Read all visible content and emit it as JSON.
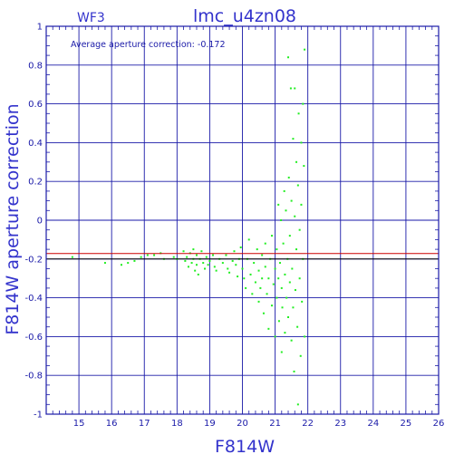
{
  "chart_data": {
    "type": "scatter",
    "title": "lmc_u4zn08",
    "subtitle": "WF3",
    "annotation": "Average aperture correction:  -0.172",
    "xlabel": "F814W",
    "ylabel": "F814W aperture correction",
    "xlim": [
      14,
      26
    ],
    "ylim": [
      -1,
      1
    ],
    "xticks": [
      15,
      16,
      17,
      18,
      19,
      20,
      21,
      22,
      23,
      24,
      25,
      26
    ],
    "yticks": [
      "-1",
      "-0.8",
      "-0.6",
      "-0.4",
      "-0.2",
      "0",
      "0.2",
      "0.4",
      "0.6",
      "0.8",
      "1"
    ],
    "grid": true,
    "colors": {
      "axis": "#1a1aa8",
      "grid": "#1a1aa8",
      "points": "#22ee22",
      "average_line": "#cc0000",
      "reference_line": "#000000"
    },
    "hlines": [
      {
        "label": "average",
        "y": -0.172
      },
      {
        "label": "reference",
        "y": -0.2
      }
    ],
    "series": [
      {
        "points": [
          [
            14.8,
            -0.19
          ],
          [
            15.8,
            -0.22
          ],
          [
            16.3,
            -0.23
          ],
          [
            16.5,
            -0.22
          ],
          [
            16.7,
            -0.21
          ],
          [
            16.9,
            -0.19
          ],
          [
            17.1,
            -0.18
          ],
          [
            17.3,
            -0.18
          ],
          [
            17.5,
            -0.17
          ],
          [
            17.6,
            -0.2
          ],
          [
            17.9,
            -0.19
          ],
          [
            18.0,
            -0.2
          ],
          [
            18.2,
            -0.16
          ],
          [
            18.25,
            -0.21
          ],
          [
            18.3,
            -0.19
          ],
          [
            18.35,
            -0.24
          ],
          [
            18.4,
            -0.17
          ],
          [
            18.45,
            -0.22
          ],
          [
            18.5,
            -0.15
          ],
          [
            18.5,
            -0.2
          ],
          [
            18.55,
            -0.26
          ],
          [
            18.6,
            -0.18
          ],
          [
            18.6,
            -0.23
          ],
          [
            18.65,
            -0.28
          ],
          [
            18.7,
            -0.2
          ],
          [
            18.75,
            -0.16
          ],
          [
            18.8,
            -0.22
          ],
          [
            18.85,
            -0.25
          ],
          [
            18.9,
            -0.19
          ],
          [
            18.95,
            -0.23
          ],
          [
            19.0,
            -0.21
          ],
          [
            19.1,
            -0.18
          ],
          [
            19.15,
            -0.24
          ],
          [
            19.2,
            -0.26
          ],
          [
            19.3,
            -0.2
          ],
          [
            19.4,
            -0.22
          ],
          [
            19.5,
            -0.18
          ],
          [
            19.55,
            -0.25
          ],
          [
            19.6,
            -0.27
          ],
          [
            19.7,
            -0.21
          ],
          [
            19.75,
            -0.16
          ],
          [
            19.8,
            -0.23
          ],
          [
            19.85,
            -0.29
          ],
          [
            19.9,
            -0.2
          ],
          [
            19.95,
            -0.14
          ],
          [
            20.0,
            -0.25
          ],
          [
            20.05,
            -0.3
          ],
          [
            20.1,
            -0.35
          ],
          [
            20.15,
            -0.2
          ],
          [
            20.2,
            -0.1
          ],
          [
            20.25,
            -0.28
          ],
          [
            20.3,
            -0.38
          ],
          [
            20.35,
            -0.22
          ],
          [
            20.4,
            -0.32
          ],
          [
            20.45,
            -0.15
          ],
          [
            20.5,
            -0.26
          ],
          [
            20.5,
            -0.42
          ],
          [
            20.55,
            -0.35
          ],
          [
            20.6,
            -0.18
          ],
          [
            20.6,
            -0.3
          ],
          [
            20.65,
            -0.48
          ],
          [
            20.7,
            -0.24
          ],
          [
            20.7,
            -0.12
          ],
          [
            20.75,
            -0.38
          ],
          [
            20.8,
            -0.3
          ],
          [
            20.8,
            -0.56
          ],
          [
            20.85,
            -0.2
          ],
          [
            20.9,
            -0.44
          ],
          [
            20.9,
            -0.08
          ],
          [
            20.95,
            -0.33
          ],
          [
            21.0,
            -0.25
          ],
          [
            21.0,
            -0.6
          ],
          [
            21.05,
            -0.4
          ],
          [
            21.05,
            -0.15
          ],
          [
            21.1,
            0.08
          ],
          [
            21.1,
            -0.3
          ],
          [
            21.12,
            -0.52
          ],
          [
            21.15,
            -0.22
          ],
          [
            21.18,
            0.0
          ],
          [
            21.2,
            -0.35
          ],
          [
            21.2,
            -0.68
          ],
          [
            21.22,
            -0.45
          ],
          [
            21.25,
            -0.12
          ],
          [
            21.28,
            0.15
          ],
          [
            21.3,
            -0.28
          ],
          [
            21.3,
            -0.58
          ],
          [
            21.33,
            0.05
          ],
          [
            21.35,
            -0.4
          ],
          [
            21.38,
            -0.2
          ],
          [
            21.4,
            0.84
          ],
          [
            21.4,
            -0.5
          ],
          [
            21.42,
            0.22
          ],
          [
            21.45,
            -0.08
          ],
          [
            21.45,
            -0.32
          ],
          [
            21.48,
            0.68
          ],
          [
            21.5,
            -0.62
          ],
          [
            21.5,
            0.1
          ],
          [
            21.52,
            -0.25
          ],
          [
            21.55,
            0.42
          ],
          [
            21.55,
            -0.45
          ],
          [
            21.58,
            -0.78
          ],
          [
            21.6,
            0.68
          ],
          [
            21.6,
            0.02
          ],
          [
            21.62,
            -0.36
          ],
          [
            21.65,
            0.3
          ],
          [
            21.65,
            -0.15
          ],
          [
            21.68,
            -0.55
          ],
          [
            21.7,
            0.18
          ],
          [
            21.7,
            -0.95
          ],
          [
            21.72,
            0.55
          ],
          [
            21.75,
            -0.05
          ],
          [
            21.75,
            -0.3
          ],
          [
            21.78,
            -0.7
          ],
          [
            21.8,
            0.4
          ],
          [
            21.8,
            0.08
          ],
          [
            21.82,
            -0.42
          ],
          [
            21.85,
            0.6
          ],
          [
            21.85,
            -0.2
          ],
          [
            21.88,
            0.28
          ],
          [
            21.9,
            -0.6
          ],
          [
            21.9,
            0.88
          ]
        ]
      }
    ]
  }
}
